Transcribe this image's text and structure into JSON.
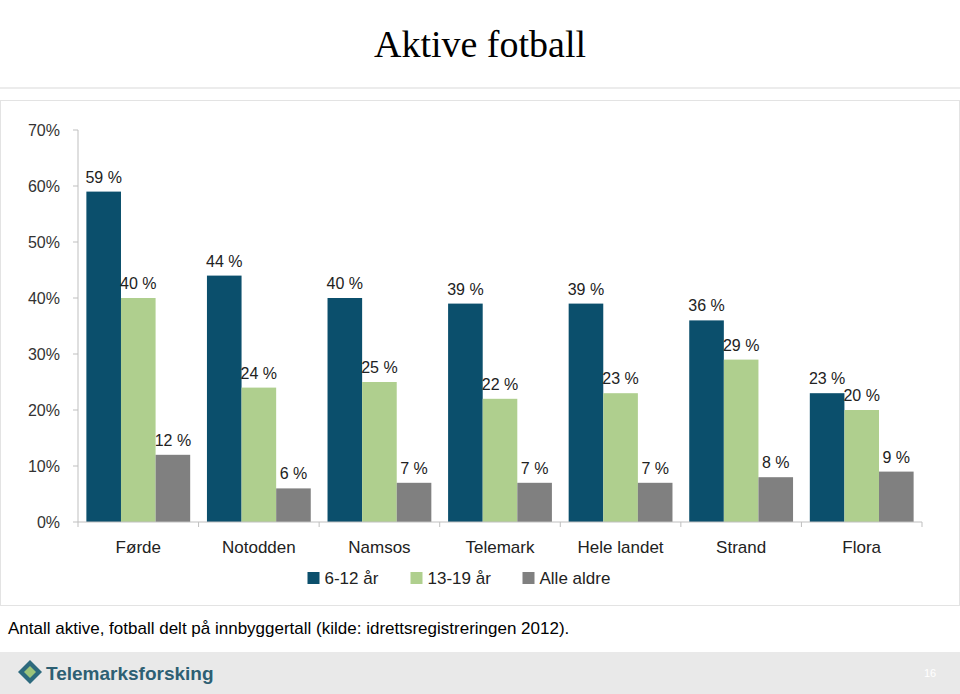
{
  "chart_data": {
    "type": "bar",
    "title": "Aktive fotball",
    "categories": [
      "Førde",
      "Notodden",
      "Namsos",
      "Telemark",
      "Hele landet",
      "Strand",
      "Flora"
    ],
    "series": [
      {
        "name": "6-12 år",
        "color": "#0b4f6c",
        "values": [
          59,
          44,
          40,
          39,
          39,
          36,
          23
        ],
        "value_labels": [
          "59 %",
          "44 %",
          "40 %",
          "39 %",
          "39 %",
          "36 %",
          "23 %"
        ]
      },
      {
        "name": "13-19 år",
        "color": "#afcf8e",
        "values": [
          40,
          24,
          25,
          22,
          23,
          29,
          20
        ],
        "value_labels": [
          "40 %",
          "24 %",
          "25 %",
          "22 %",
          "23 %",
          "29 %",
          "20 %"
        ]
      },
      {
        "name": "Alle aldre",
        "color": "#808080",
        "values": [
          12,
          6,
          7,
          7,
          7,
          8,
          9
        ],
        "value_labels": [
          "12 %",
          "6 %",
          "7 %",
          "7 %",
          "7 %",
          "8 %",
          "9 %"
        ]
      }
    ],
    "ylim": [
      0,
      70
    ],
    "yticks": [
      {
        "value": 0,
        "label": "0%"
      },
      {
        "value": 10,
        "label": "10%"
      },
      {
        "value": 20,
        "label": "20%"
      },
      {
        "value": 30,
        "label": "30%"
      },
      {
        "value": 40,
        "label": "40%"
      },
      {
        "value": 50,
        "label": "50%"
      },
      {
        "value": 60,
        "label": "60%"
      },
      {
        "value": 70,
        "label": "70%"
      }
    ],
    "grid": false,
    "legend": "bottom",
    "data_labels": true,
    "caption": "Antall aktive, fotball delt på innbyggertall (kilde: idrettsregistreringen 2012).",
    "footer_logo": "Telemarksforsking",
    "page_number": "16"
  }
}
